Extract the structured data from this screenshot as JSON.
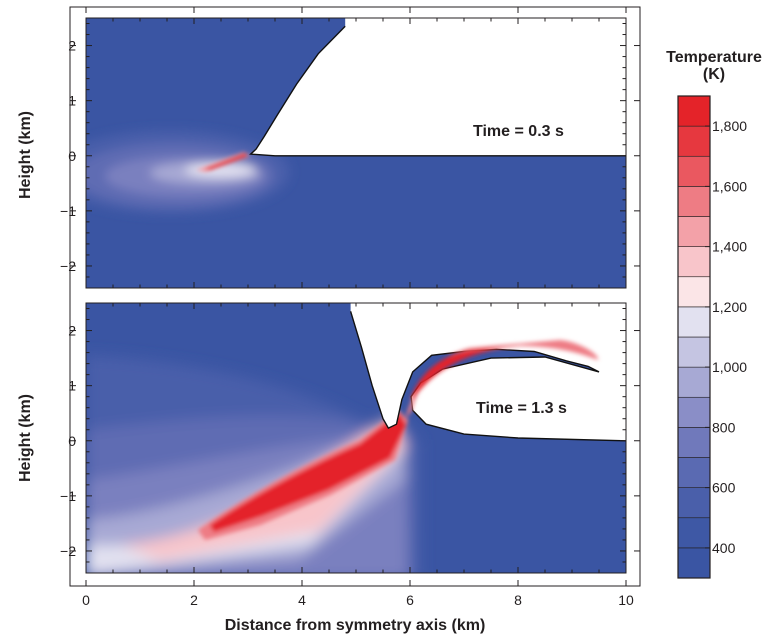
{
  "chart_data": {
    "type": "heatmap",
    "xlabel": "Distance from symmetry axis (km)",
    "xlim": [
      0,
      10
    ],
    "x_ticks": [
      "0",
      "2",
      "4",
      "6",
      "8",
      "10"
    ],
    "panels": [
      {
        "ylabel": "Height (km)",
        "ylim": [
          -2.4,
          2.5
        ],
        "y_ticks": [
          "2",
          "1",
          "0",
          "−1",
          "−2"
        ],
        "annotation": "Time = 0.3 s",
        "surface_profile": [
          [
            4.8,
            2.35
          ],
          [
            4.3,
            1.85
          ],
          [
            3.9,
            1.3
          ],
          [
            3.55,
            0.75
          ],
          [
            3.3,
            0.35
          ],
          [
            3.15,
            0.12
          ],
          [
            3.05,
            0.03
          ],
          [
            3.5,
            0.0
          ],
          [
            10.0,
            0.0
          ]
        ]
      },
      {
        "ylabel": "Height (km)",
        "ylim": [
          -2.4,
          2.5
        ],
        "y_ticks": [
          "2",
          "1",
          "0",
          "−1",
          "−2"
        ],
        "annotation": "Time = 1.3 s",
        "surface_profile": [
          [
            4.9,
            2.35
          ],
          [
            5.1,
            1.7
          ],
          [
            5.3,
            1.0
          ],
          [
            5.5,
            0.4
          ],
          [
            5.6,
            0.23
          ],
          [
            5.75,
            0.3
          ],
          [
            5.85,
            0.75
          ],
          [
            6.05,
            1.25
          ],
          [
            6.4,
            1.55
          ],
          [
            7.0,
            1.62
          ],
          [
            7.6,
            1.66
          ],
          [
            8.3,
            1.62
          ],
          [
            8.9,
            1.45
          ],
          [
            9.3,
            1.35
          ],
          [
            9.5,
            1.25
          ],
          [
            8.5,
            1.52
          ],
          [
            7.5,
            1.5
          ],
          [
            6.6,
            1.3
          ],
          [
            6.2,
            1.05
          ],
          [
            6.02,
            0.8
          ],
          [
            6.05,
            0.55
          ],
          [
            6.3,
            0.3
          ],
          [
            7.0,
            0.12
          ],
          [
            8.0,
            0.05
          ],
          [
            10.0,
            0.0
          ]
        ]
      }
    ],
    "colorbar": {
      "title_line1": "Temperature",
      "title_line2": "(K)",
      "range": [
        300,
        1900
      ],
      "ticks": [
        "400",
        "600",
        "800",
        "1,000",
        "1,200",
        "1,400",
        "1,600",
        "1,800"
      ],
      "colors": [
        "#3a55a3",
        "#3e58a5",
        "#4a5faa",
        "#5a6ab2",
        "#7079bb",
        "#8a8ec7",
        "#a7a9d4",
        "#c5c5e2",
        "#e2e1f0",
        "#fbe5e7",
        "#f8c5ca",
        "#f3a1a8",
        "#ee7c84",
        "#ea5860",
        "#e6383f",
        "#e42329"
      ]
    }
  }
}
